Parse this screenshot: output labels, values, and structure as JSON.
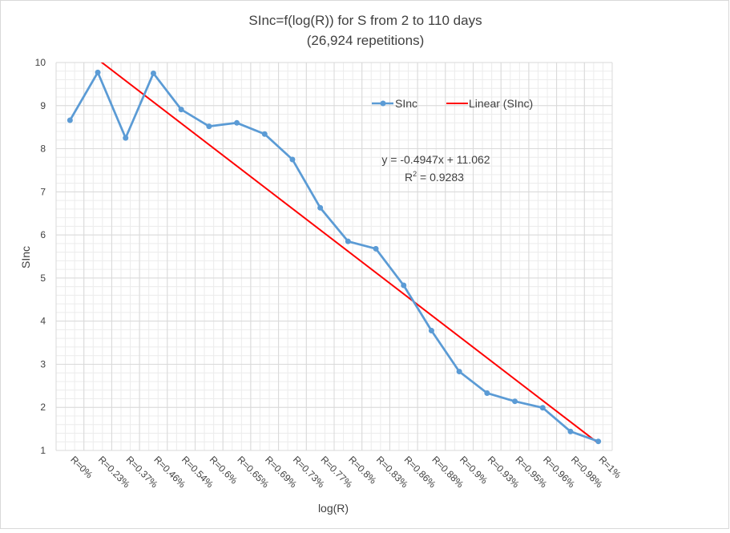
{
  "chart_data": {
    "type": "line",
    "title_line1": "SInc=f(log(R)) for S from 2 to 110 days",
    "title_line2": "(26,924 repetitions)",
    "xlabel": "log(R)",
    "ylabel": "SInc",
    "ylim": [
      1,
      10
    ],
    "yticks": [
      "1",
      "2",
      "3",
      "4",
      "5",
      "6",
      "7",
      "8",
      "9",
      "10"
    ],
    "grid": true,
    "legend_position": "top-right",
    "categories": [
      "R=0%",
      "R=0.23%",
      "R=0.37%",
      "R=0.46%",
      "R=0.54%",
      "R=0.6%",
      "R=0.65%",
      "R=0.69%",
      "R=0.73%",
      "R=0.77%",
      "R=0.8%",
      "R=0.83%",
      "R=0.86%",
      "R=0.88%",
      "R=0.9%",
      "R=0.93%",
      "R=0.95%",
      "R=0.96%",
      "R=0.98%",
      "R=1%"
    ],
    "series": [
      {
        "name": "SInc",
        "color": "#5b9bd5",
        "values": [
          8.66,
          9.77,
          8.25,
          9.75,
          8.91,
          8.52,
          8.6,
          8.34,
          7.75,
          6.63,
          5.85,
          5.68,
          4.83,
          3.78,
          2.83,
          2.33,
          2.14,
          1.99,
          1.44,
          1.21
        ]
      }
    ],
    "trendline": {
      "name": "Linear (SInc)",
      "color": "#ff0000",
      "slope": -0.4947,
      "intercept": 11.062,
      "equation": "y = -0.4947x + 11.062",
      "r2_prefix": "R",
      "r2_sup": "2",
      "r2_value": " = 0.9283"
    }
  }
}
